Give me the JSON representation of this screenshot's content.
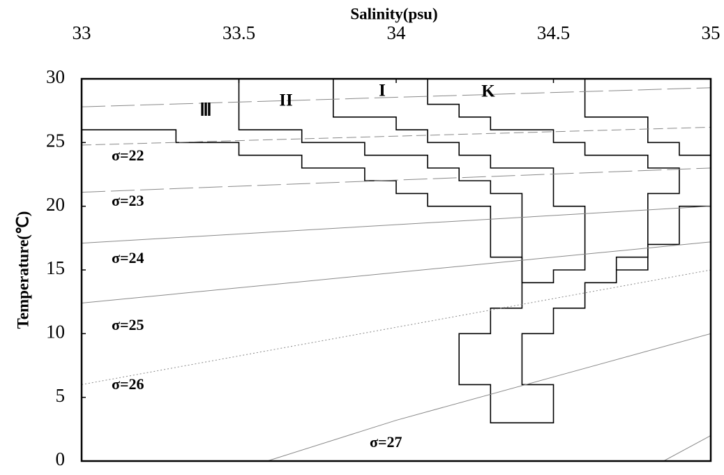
{
  "chart_data": {
    "type": "line",
    "xlabel": "Salinity(psu)",
    "ylabel": "Temperature(℃)",
    "xlim": [
      33,
      35
    ],
    "ylim": [
      0,
      30
    ],
    "xticks": [
      33,
      33.5,
      34,
      34.5,
      35
    ],
    "yticks": [
      0,
      5,
      10,
      15,
      20,
      25,
      30
    ],
    "annotations": [
      "Ⅲ",
      "II",
      "I",
      "K"
    ],
    "series": [
      {
        "color": "#000000",
        "linestyle": "solid",
        "x": [
          33,
          33.3,
          33.3,
          33.5,
          33.5,
          33.7,
          33.7,
          33.9,
          33.9,
          34,
          34,
          34.1,
          34.1,
          34.3,
          34.3,
          34.4,
          34.4,
          34.3,
          34.3,
          34.2,
          34.2,
          34.3,
          34.3,
          34.5,
          34.5,
          34.4,
          34.4,
          34.5,
          34.5,
          34.6,
          34.6,
          34.7,
          34.7,
          34.8,
          34.8,
          34.9,
          34.9,
          35,
          35,
          34.9,
          34.9,
          34.8,
          34.8,
          34.6,
          34.6
        ],
        "y": [
          26,
          26,
          25,
          25,
          24,
          24,
          23,
          23,
          22,
          22,
          21,
          21,
          20,
          20,
          16,
          16,
          12,
          12,
          10,
          10,
          6,
          6,
          3,
          3,
          6,
          6,
          10,
          10,
          12,
          12,
          14,
          14,
          15,
          15,
          17,
          17,
          20,
          20,
          24,
          24,
          25,
          25,
          27,
          27,
          30
        ]
      },
      {
        "color": "#000000",
        "linestyle": "solid",
        "x": [
          33.5,
          33.5,
          33.7,
          33.7,
          33.9,
          33.9,
          34.1,
          34.1,
          34.2,
          34.2,
          34.3,
          34.3,
          34.4,
          34.4,
          34.5,
          34.5,
          34.6,
          34.6,
          34.5,
          34.5,
          34.3,
          34.3,
          34.2,
          34.2,
          34.1,
          34.1,
          34,
          34,
          33.8,
          33.8
        ],
        "y": [
          30,
          26,
          26,
          25,
          25,
          24,
          24,
          23,
          23,
          22,
          22,
          21,
          21,
          14,
          14,
          15,
          15,
          20,
          20,
          23,
          23,
          24,
          24,
          25,
          25,
          26,
          26,
          27,
          27,
          30
        ]
      },
      {
        "color": "#000000",
        "linestyle": "solid",
        "x": [
          34.1,
          34.1,
          34.2,
          34.2,
          34.3,
          34.3,
          34.5,
          34.5,
          34.6,
          34.6,
          34.8,
          34.8,
          34.9,
          34.9,
          34.8,
          34.8,
          34.7,
          34.7
        ],
        "y": [
          30,
          28,
          28,
          27,
          27,
          26,
          26,
          25,
          25,
          24,
          24,
          23,
          23,
          21,
          21,
          16,
          16,
          15
        ]
      },
      {
        "color": "#888888",
        "linestyle": "longdash",
        "x": [
          33,
          35
        ],
        "y": [
          27.8,
          29.3
        ]
      },
      {
        "name": "σ=22",
        "color": "#888888",
        "linestyle": "dashed",
        "x": [
          33,
          35
        ],
        "y": [
          24.8,
          26.2
        ]
      },
      {
        "name": "σ=23",
        "color": "#888888",
        "linestyle": "longdash",
        "x": [
          33,
          35
        ],
        "y": [
          21.1,
          23.0
        ]
      },
      {
        "name": "σ=24",
        "color": "#888888",
        "linestyle": "solid",
        "x": [
          33,
          35
        ],
        "y": [
          17.1,
          20.0
        ]
      },
      {
        "name": "σ=25",
        "color": "#888888",
        "linestyle": "solid",
        "x": [
          33,
          35
        ],
        "y": [
          12.4,
          17.2
        ]
      },
      {
        "name": "σ=26",
        "color": "#888888",
        "linestyle": "dotted",
        "x": [
          33,
          35
        ],
        "y": [
          6.0,
          15.0
        ]
      },
      {
        "name": "σ=27",
        "color": "#888888",
        "linestyle": "solid",
        "x": [
          33.59,
          34,
          34.5,
          35
        ],
        "y": [
          0,
          3.2,
          6.6,
          10
        ]
      },
      {
        "color": "#888888",
        "linestyle": "solid",
        "x": [
          34.85,
          35
        ],
        "y": [
          0,
          2
        ]
      }
    ]
  }
}
